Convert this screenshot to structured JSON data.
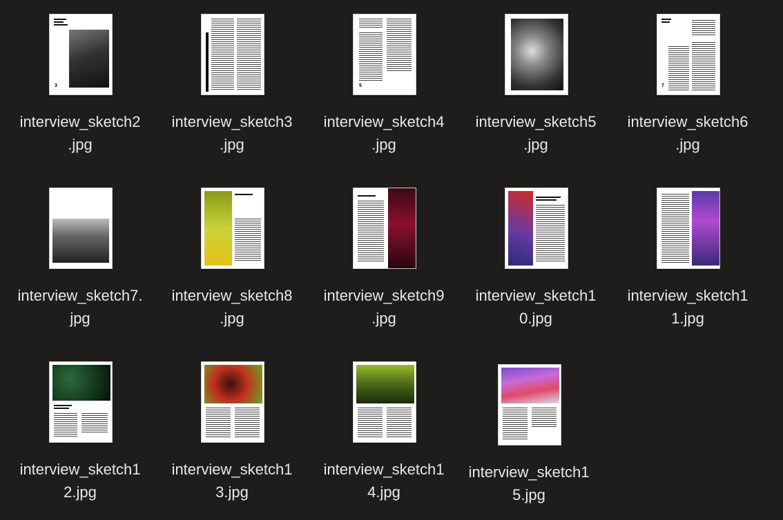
{
  "window": {
    "background": "#1f1d1c"
  },
  "files": [
    {
      "name": "interview_sketch2.jpg",
      "line1": "interview_sketch2",
      "line2": ".jpg",
      "page_number": "3"
    },
    {
      "name": "interview_sketch3.jpg",
      "line1": "interview_sketch3",
      "line2": ".jpg"
    },
    {
      "name": "interview_sketch4.jpg",
      "line1": "interview_sketch4",
      "line2": ".jpg",
      "page_number": "5"
    },
    {
      "name": "interview_sketch5.jpg",
      "line1": "interview_sketch5",
      "line2": ".jpg"
    },
    {
      "name": "interview_sketch6.jpg",
      "line1": "interview_sketch6",
      "line2": ".jpg",
      "page_number": "7"
    },
    {
      "name": "interview_sketch7.jpg",
      "line1": "interview_sketch7.",
      "line2": "jpg"
    },
    {
      "name": "interview_sketch8.jpg",
      "line1": "interview_sketch8",
      "line2": ".jpg"
    },
    {
      "name": "interview_sketch9.jpg",
      "line1": "interview_sketch9",
      "line2": ".jpg"
    },
    {
      "name": "interview_sketch10.jpg",
      "line1": "interview_sketch1",
      "line2": "0.jpg"
    },
    {
      "name": "interview_sketch11.jpg",
      "line1": "interview_sketch1",
      "line2": "1.jpg"
    },
    {
      "name": "interview_sketch12.jpg",
      "line1": "interview_sketch1",
      "line2": "2.jpg"
    },
    {
      "name": "interview_sketch13.jpg",
      "line1": "interview_sketch1",
      "line2": "3.jpg"
    },
    {
      "name": "interview_sketch14.jpg",
      "line1": "interview_sketch1",
      "line2": "4.jpg"
    },
    {
      "name": "interview_sketch15.jpg",
      "line1": "interview_sketch1",
      "line2": "5.jpg"
    }
  ]
}
